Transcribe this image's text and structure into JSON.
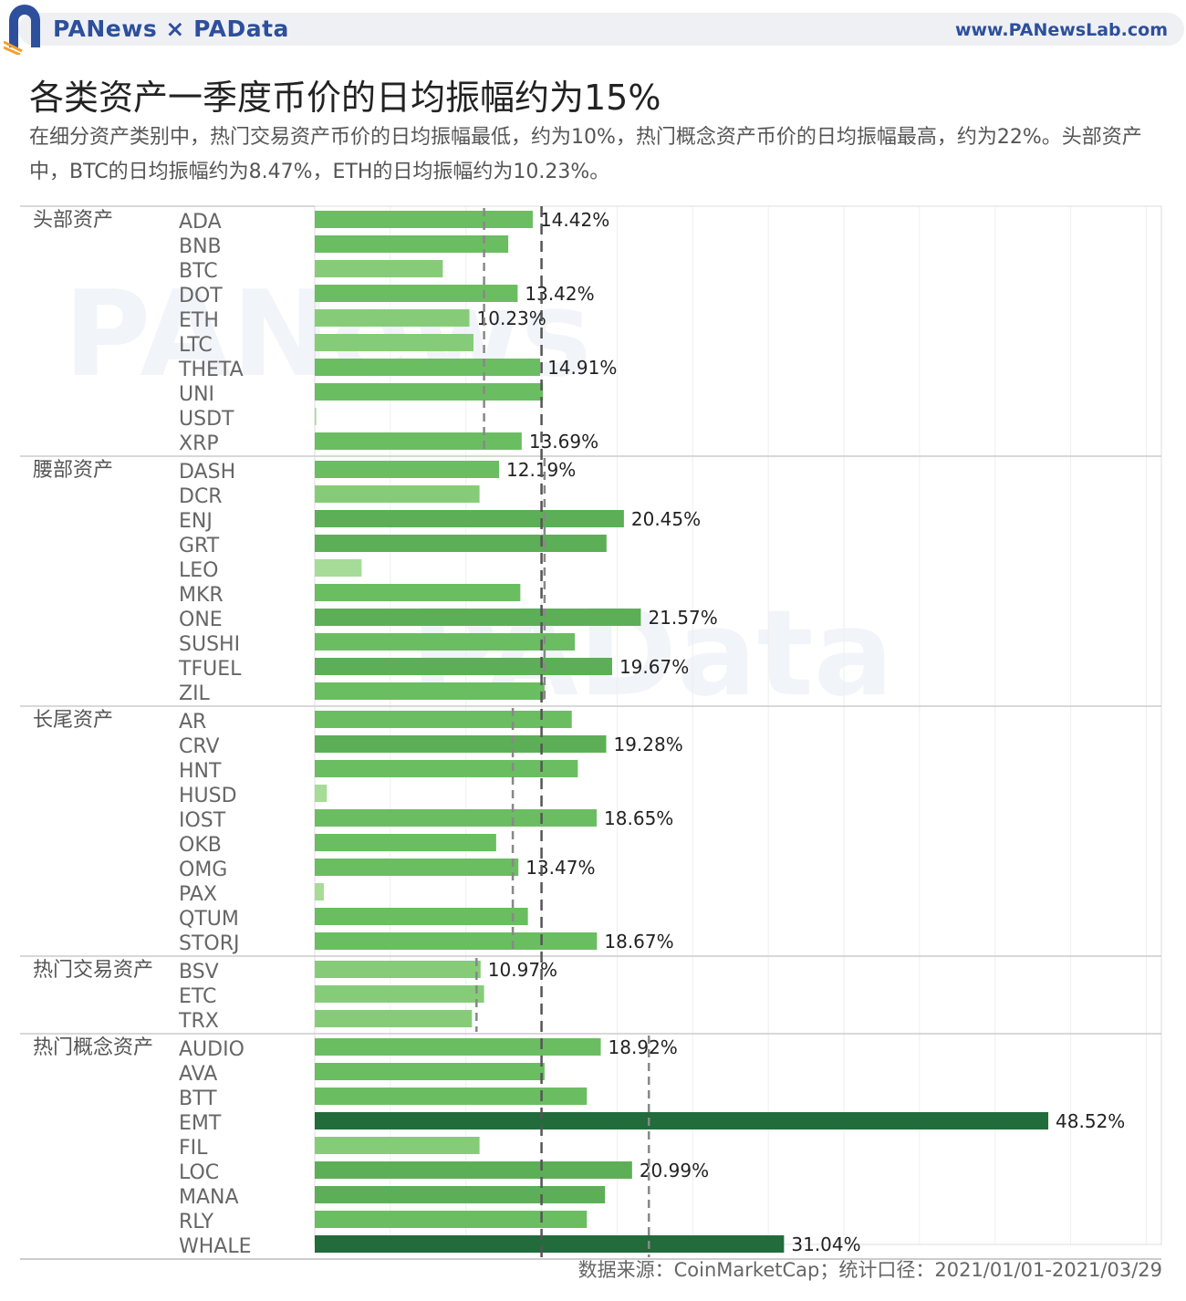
{
  "header": {
    "brand": "PANews × PAData",
    "website": "www.PANewsLab.com"
  },
  "title": "各类资产一季度币价的日均振幅约为15%",
  "subtitle": "在细分资产类别中，热门交易资产币价的日均振幅最低，约为10%，热门概念资产币价的日均振幅最高，约为22%。头部资产中，BTC的日均振幅约为8.47%，ETH的日均振幅约为10.23%。",
  "source": "数据来源：CoinMarketCap；统计口径：2021/01/01-2021/03/29",
  "watermarks": [
    "PANews",
    "PAData"
  ],
  "colors": {
    "bar_light": "#a6db98",
    "bar_mid": "#6bbd62",
    "bar_dark": "#226b3b",
    "group_avg_line": "#888888",
    "overall_avg_line": "#555555",
    "accent": "#2d4f9c"
  },
  "chart_data": {
    "type": "bar",
    "orientation": "horizontal",
    "xlim": [
      0,
      56
    ],
    "grid": true,
    "overall_average": 15.0,
    "groups": [
      {
        "name": "头部资产",
        "average": 11.2,
        "items": [
          {
            "name": "ADA",
            "value": 14.42,
            "label": "14.42%"
          },
          {
            "name": "BNB",
            "value": 12.8,
            "label": ""
          },
          {
            "name": "BTC",
            "value": 8.47,
            "label": ""
          },
          {
            "name": "DOT",
            "value": 13.42,
            "label": "13.42%"
          },
          {
            "name": "ETH",
            "value": 10.23,
            "label": "10.23%"
          },
          {
            "name": "LTC",
            "value": 10.5,
            "label": ""
          },
          {
            "name": "THETA",
            "value": 14.91,
            "label": "14.91%"
          },
          {
            "name": "UNI",
            "value": 15.1,
            "label": ""
          },
          {
            "name": "USDT",
            "value": 0.1,
            "label": ""
          },
          {
            "name": "XRP",
            "value": 13.69,
            "label": "13.69%"
          }
        ]
      },
      {
        "name": "腰部资产",
        "average": 15.2,
        "items": [
          {
            "name": "DASH",
            "value": 12.19,
            "label": "12.19%"
          },
          {
            "name": "DCR",
            "value": 10.9,
            "label": ""
          },
          {
            "name": "ENJ",
            "value": 20.45,
            "label": "20.45%"
          },
          {
            "name": "GRT",
            "value": 19.3,
            "label": ""
          },
          {
            "name": "LEO",
            "value": 3.1,
            "label": ""
          },
          {
            "name": "MKR",
            "value": 13.6,
            "label": ""
          },
          {
            "name": "ONE",
            "value": 21.57,
            "label": "21.57%"
          },
          {
            "name": "SUSHI",
            "value": 17.2,
            "label": ""
          },
          {
            "name": "TFUEL",
            "value": 19.67,
            "label": "19.67%"
          },
          {
            "name": "ZIL",
            "value": 15.2,
            "label": ""
          }
        ]
      },
      {
        "name": "长尾资产",
        "average": 13.1,
        "items": [
          {
            "name": "AR",
            "value": 17.0,
            "label": ""
          },
          {
            "name": "CRV",
            "value": 19.28,
            "label": "19.28%"
          },
          {
            "name": "HNT",
            "value": 17.4,
            "label": ""
          },
          {
            "name": "HUSD",
            "value": 0.8,
            "label": ""
          },
          {
            "name": "IOST",
            "value": 18.65,
            "label": "18.65%"
          },
          {
            "name": "OKB",
            "value": 12.0,
            "label": ""
          },
          {
            "name": "OMG",
            "value": 13.47,
            "label": "13.47%"
          },
          {
            "name": "PAX",
            "value": 0.6,
            "label": ""
          },
          {
            "name": "QTUM",
            "value": 14.1,
            "label": ""
          },
          {
            "name": "STORJ",
            "value": 18.67,
            "label": "18.67%"
          }
        ]
      },
      {
        "name": "热门交易资产",
        "average": 10.7,
        "items": [
          {
            "name": "BSV",
            "value": 10.97,
            "label": "10.97%"
          },
          {
            "name": "ETC",
            "value": 11.2,
            "label": ""
          },
          {
            "name": "TRX",
            "value": 10.4,
            "label": ""
          }
        ]
      },
      {
        "name": "热门概念资产",
        "average": 22.1,
        "items": [
          {
            "name": "AUDIO",
            "value": 18.92,
            "label": "18.92%"
          },
          {
            "name": "AVA",
            "value": 15.2,
            "label": ""
          },
          {
            "name": "BTT",
            "value": 18.0,
            "label": ""
          },
          {
            "name": "EMT",
            "value": 48.52,
            "label": "48.52%"
          },
          {
            "name": "FIL",
            "value": 10.9,
            "label": ""
          },
          {
            "name": "LOC",
            "value": 20.99,
            "label": "20.99%"
          },
          {
            "name": "MANA",
            "value": 19.2,
            "label": ""
          },
          {
            "name": "RLY",
            "value": 18.0,
            "label": ""
          },
          {
            "name": "WHALE",
            "value": 31.04,
            "label": "31.04%"
          }
        ]
      }
    ]
  }
}
